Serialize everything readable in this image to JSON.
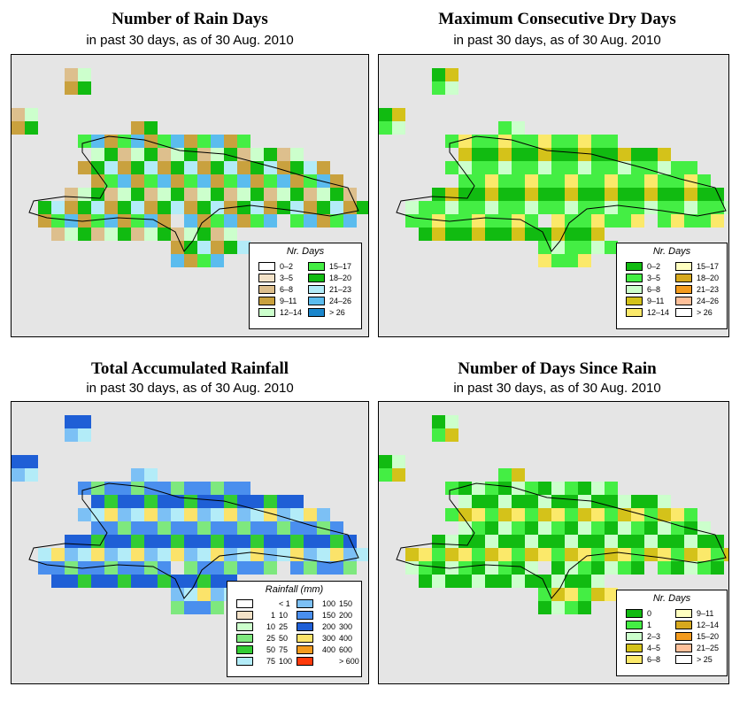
{
  "panels": [
    {
      "id": "rain-days",
      "title": "Number of Rain Days",
      "subtitle": "in past 30 days, as of  30 Aug. 2010",
      "legend": {
        "title": "Nr. Days",
        "items": [
          {
            "label": "0–2",
            "color": "#ffffff"
          },
          {
            "label": "3–5",
            "color": "#f3e2c8"
          },
          {
            "label": "6–8",
            "color": "#ddbf8d"
          },
          {
            "label": "9–11",
            "color": "#c9a13e"
          },
          {
            "label": "12–14",
            "color": "#ccffcc"
          },
          {
            "label": "15–17",
            "color": "#44ee44"
          },
          {
            "label": "18–20",
            "color": "#11bb11"
          },
          {
            "label": "21–23",
            "color": "#b3ecf8"
          },
          {
            "label": "24–26",
            "color": "#5bbcee"
          },
          {
            "label": "> 26",
            "color": "#1a86cc"
          }
        ]
      }
    },
    {
      "id": "dry-days",
      "title": "Maximum Consecutive Dry Days",
      "subtitle": "in past 30 days, as of  30 Aug. 2010",
      "legend": {
        "title": "Nr. Days",
        "items": [
          {
            "label": "0–2",
            "color": "#11bb11"
          },
          {
            "label": "3–5",
            "color": "#44ee44"
          },
          {
            "label": "6–8",
            "color": "#ccffcc"
          },
          {
            "label": "9–11",
            "color": "#d4c21a"
          },
          {
            "label": "12–14",
            "color": "#fbe96a"
          },
          {
            "label": "15–17",
            "color": "#ffffc0"
          },
          {
            "label": "18–20",
            "color": "#d7a91e"
          },
          {
            "label": "21–23",
            "color": "#f39b1e"
          },
          {
            "label": "24–26",
            "color": "#ffc09a"
          },
          {
            "label": "> 26",
            "color": "#ffffff"
          }
        ]
      }
    },
    {
      "id": "rainfall",
      "title": "Total Accumulated Rainfall",
      "subtitle": "in past 30 days, as of  30 Aug. 2010",
      "legend": {
        "title": "Rainfall (mm)",
        "items": [
          {
            "lo": "",
            "hi": "< 1",
            "color": "#ffffff"
          },
          {
            "lo": "1",
            "hi": "10",
            "color": "#f3e2c8"
          },
          {
            "lo": "10",
            "hi": "25",
            "color": "#ccffcc"
          },
          {
            "lo": "25",
            "hi": "50",
            "color": "#7ee87e"
          },
          {
            "lo": "50",
            "hi": "75",
            "color": "#33cc33"
          },
          {
            "lo": "75",
            "hi": "100",
            "color": "#b3ecf8"
          },
          {
            "lo": "100",
            "hi": "150",
            "color": "#7cc0f5"
          },
          {
            "lo": "150",
            "hi": "200",
            "color": "#4a8fee"
          },
          {
            "lo": "200",
            "hi": "300",
            "color": "#1f5fd6"
          },
          {
            "lo": "300",
            "hi": "400",
            "color": "#fbe36a"
          },
          {
            "lo": "400",
            "hi": "600",
            "color": "#f39b1e"
          },
          {
            "lo": "",
            "hi": "> 600",
            "color": "#ff3a0a"
          }
        ]
      }
    },
    {
      "id": "since-rain",
      "title": "Number of Days Since Rain",
      "subtitle": "in past 30 days, as of  30 Aug. 2010",
      "legend": {
        "title": "Nr. Days",
        "items": [
          {
            "label": "0",
            "color": "#11bb11"
          },
          {
            "label": "1",
            "color": "#44ee44"
          },
          {
            "label": "2–3",
            "color": "#ccffcc"
          },
          {
            "label": "4–5",
            "color": "#d4c21a"
          },
          {
            "label": "6–8",
            "color": "#fbe96a"
          },
          {
            "label": "9–11",
            "color": "#ffffc0"
          },
          {
            "label": "12–14",
            "color": "#d7a91e"
          },
          {
            "label": "15–20",
            "color": "#f39b1e"
          },
          {
            "label": "21–25",
            "color": "#ffc09a"
          },
          {
            "label": "> 25",
            "color": "#ffffff"
          }
        ]
      }
    }
  ]
}
